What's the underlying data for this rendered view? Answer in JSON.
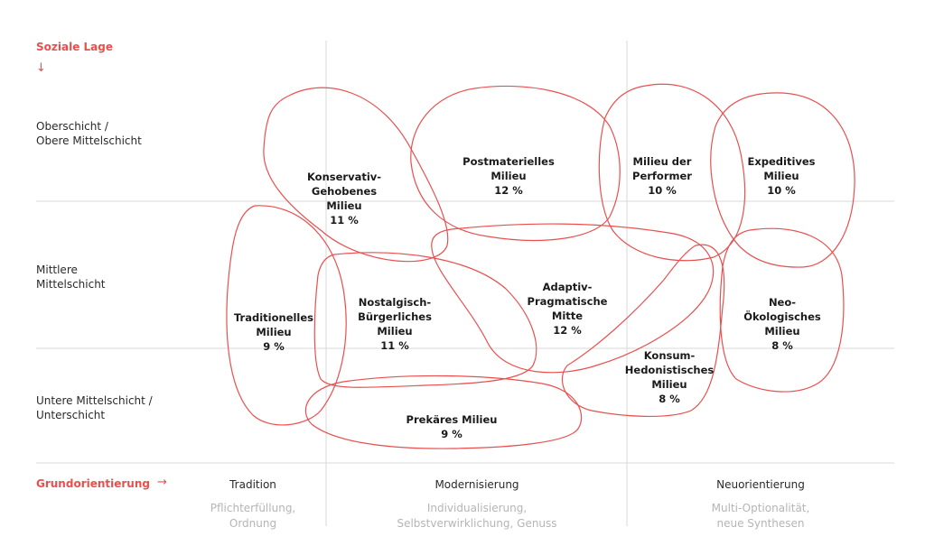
{
  "y_axis": {
    "title": "Soziale Lage",
    "arrow": "↓",
    "levels": [
      "Oberschicht /\nObere Mittelschicht",
      "Mittlere\nMittelschicht",
      "Untere Mittelschicht /\nUnterschicht"
    ]
  },
  "x_axis": {
    "title": "Grundorientierung",
    "arrow": "→",
    "columns": [
      {
        "label": "Tradition",
        "sub": "Pflichterfüllung,\nOrdnung"
      },
      {
        "label": "Modernisierung",
        "sub": "Individualisierung,\nSelbstverwirklichung, Genuss"
      },
      {
        "label": "Neuorientierung",
        "sub": "Multi-Optionalität,\nneue Synthesen"
      }
    ]
  },
  "milieus": [
    {
      "name": "Konservativ-\nGehobenes\nMilieu",
      "pct": "11 %"
    },
    {
      "name": "Postmaterielles\nMilieu",
      "pct": "12 %"
    },
    {
      "name": "Milieu der\nPerformer",
      "pct": "10 %"
    },
    {
      "name": "Expeditives\nMilieu",
      "pct": "10 %"
    },
    {
      "name": "Traditionelles\nMilieu",
      "pct": "9 %"
    },
    {
      "name": "Nostalgisch-\nBürgerliches\nMilieu",
      "pct": "11 %"
    },
    {
      "name": "Adaptiv-\nPragmatische\nMitte",
      "pct": "12 %"
    },
    {
      "name": "Neo-\nÖkologisches\nMilieu",
      "pct": "8 %"
    },
    {
      "name": "Konsum-\nHedonistisches\nMilieu",
      "pct": "8 %"
    },
    {
      "name": "Prekäres Milieu",
      "pct": "9 %"
    }
  ],
  "colors": {
    "accent": "#e8504f",
    "grid": "#d9d9d9",
    "text": "#1a1a1a",
    "muted": "#b5b5b5"
  }
}
